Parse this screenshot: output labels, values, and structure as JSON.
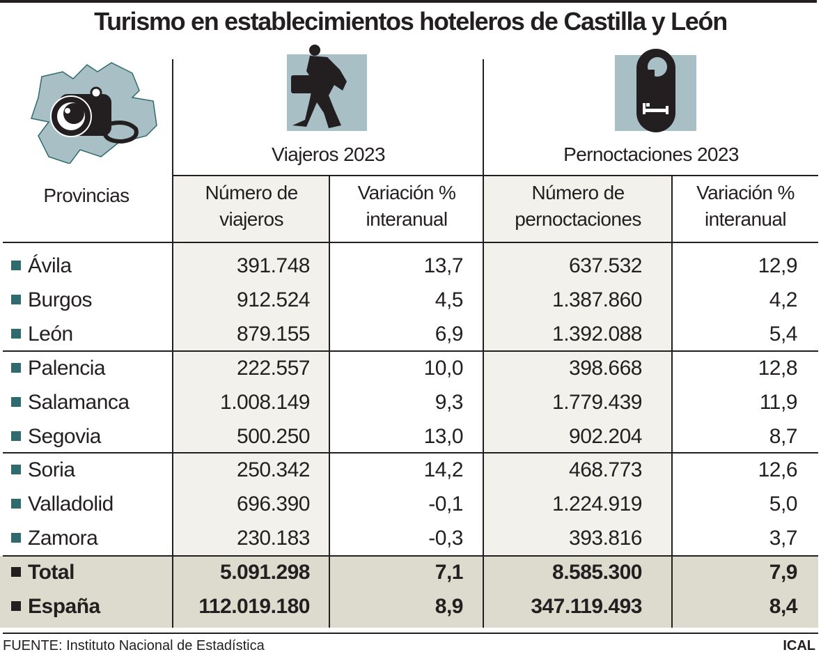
{
  "title": "Turismo en establecimientos hoteleros de Castilla y León",
  "header": {
    "provinces": "Provincias",
    "group_viajeros": "Viajeros 2023",
    "group_pernoctaciones": "Pernoctaciones 2023",
    "col_viajeros": [
      "Número de",
      "viajeros"
    ],
    "col_var1": [
      "Variación %",
      "interanual"
    ],
    "col_pernoct": [
      "Número de",
      "pernoctaciones"
    ],
    "col_var2": [
      "Variación %",
      "interanual"
    ]
  },
  "icons": {
    "map": "castilla-leon-map-camera-icon",
    "traveler": "traveler-with-suitcase-icon",
    "hotel": "hotel-door-hanger-bed-icon"
  },
  "colors": {
    "accent_map": "#a9bfc6",
    "marker": "#2f6a6c",
    "total_band": "#dcdbcd",
    "shaded_column": "#f3f1ec"
  },
  "rows": [
    {
      "name": "Ávila",
      "viajeros": "391.748",
      "var_v": "13,7",
      "pernoct": "637.532",
      "var_p": "12,9"
    },
    {
      "name": "Burgos",
      "viajeros": "912.524",
      "var_v": "4,5",
      "pernoct": "1.387.860",
      "var_p": "4,2"
    },
    {
      "name": "León",
      "viajeros": "879.155",
      "var_v": "6,9",
      "pernoct": "1.392.088",
      "var_p": "5,4"
    },
    {
      "name": "Palencia",
      "viajeros": "222.557",
      "var_v": "10,0",
      "pernoct": "398.668",
      "var_p": "12,8"
    },
    {
      "name": "Salamanca",
      "viajeros": "1.008.149",
      "var_v": "9,3",
      "pernoct": "1.779.439",
      "var_p": "11,9"
    },
    {
      "name": "Segovia",
      "viajeros": "500.250",
      "var_v": "13,0",
      "pernoct": "902.204",
      "var_p": "8,7"
    },
    {
      "name": "Soria",
      "viajeros": "250.342",
      "var_v": "14,2",
      "pernoct": "468.773",
      "var_p": "12,6"
    },
    {
      "name": "Valladolid",
      "viajeros": "696.390",
      "var_v": "-0,1",
      "pernoct": "1.224.919",
      "var_p": "5,0"
    },
    {
      "name": "Zamora",
      "viajeros": "230.183",
      "var_v": "-0,3",
      "pernoct": "393.816",
      "var_p": "3,7"
    }
  ],
  "totals": [
    {
      "name": "Total",
      "viajeros": "5.091.298",
      "var_v": "7,1",
      "pernoct": "8.585.300",
      "var_p": "7,9"
    },
    {
      "name": "España",
      "viajeros": "112.019.180",
      "var_v": "8,9",
      "pernoct": "347.119.493",
      "var_p": "8,4"
    }
  ],
  "footer": {
    "source": "FUENTE: Instituto Nacional de Estadística",
    "brand": "ICAL"
  }
}
